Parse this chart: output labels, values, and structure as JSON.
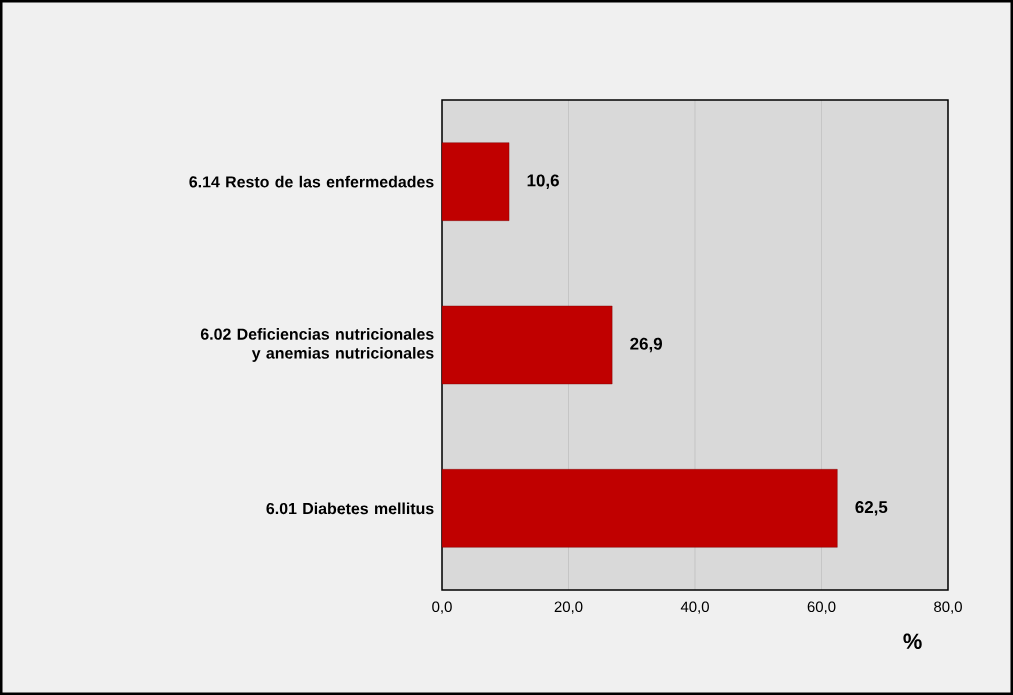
{
  "chart_data": {
    "type": "bar",
    "orientation": "horizontal",
    "categories": [
      "6.14 Resto de las enfermedades",
      "6.02 Deficiencias nutricionales y anemias nutricionales",
      "6.01 Diabetes mellitus"
    ],
    "values": [
      10.6,
      26.9,
      62.5
    ],
    "color": "#c00000",
    "xlabel": "%",
    "xlim": [
      0,
      80
    ],
    "xticks": [
      {
        "value": 0,
        "label": "0,0"
      },
      {
        "value": 20,
        "label": "20,0"
      },
      {
        "value": 40,
        "label": "40,0"
      },
      {
        "value": 60,
        "label": "60,0"
      },
      {
        "value": 80,
        "label": "80,0"
      }
    ],
    "value_labels": [
      "10,6",
      "26,9",
      "62,5"
    ],
    "grid": "x"
  }
}
